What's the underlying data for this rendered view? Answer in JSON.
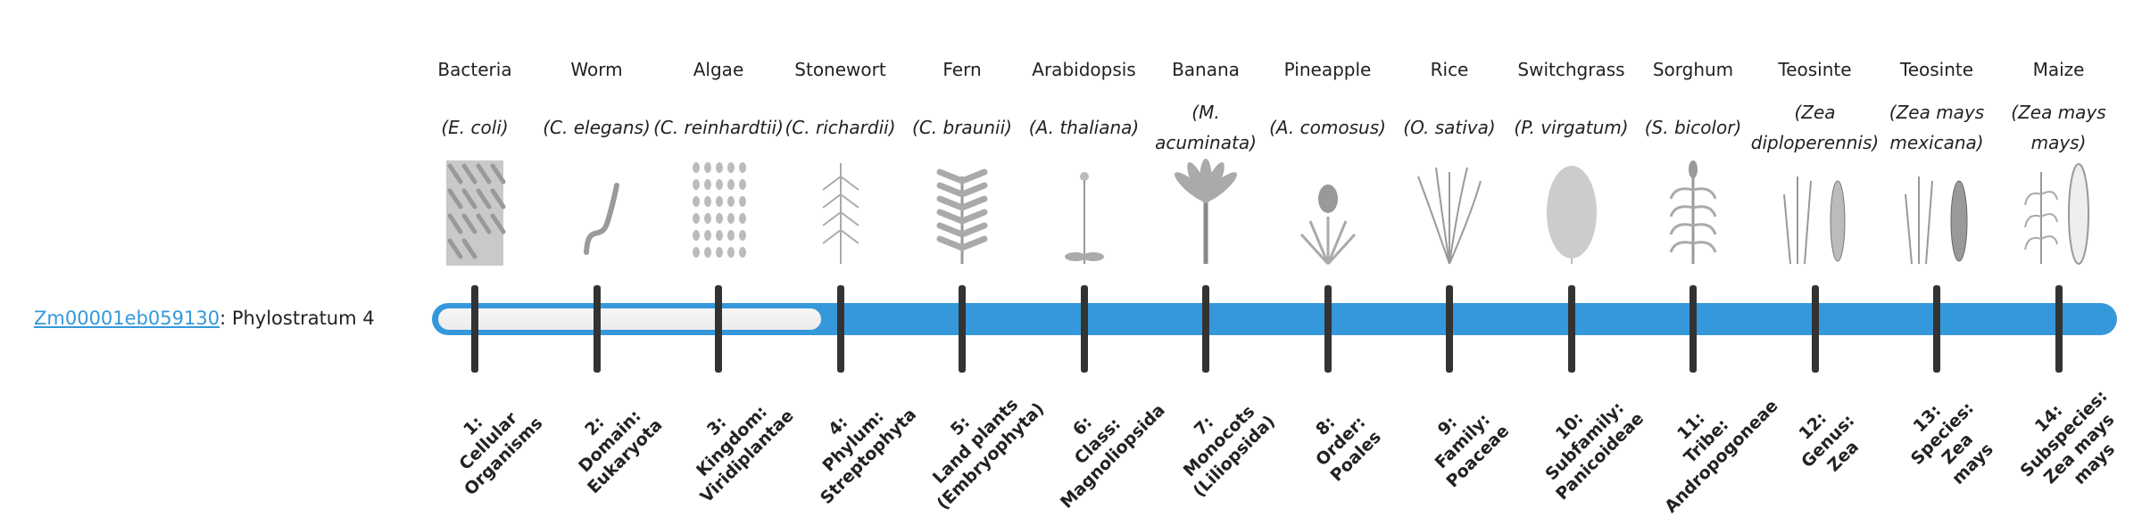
{
  "gene": {
    "id": "Zm00001eb059130",
    "suffix": ": Phylostratum 4"
  },
  "phylostratum": 4,
  "colors": {
    "bar": "#3498db",
    "tick": "#333333",
    "link": "#3498db"
  },
  "organisms": [
    {
      "name": "Bacteria",
      "sci": "(E. coli)",
      "icon": "bacteria-icon"
    },
    {
      "name": "Worm",
      "sci": "(C. elegans)",
      "icon": "worm-icon"
    },
    {
      "name": "Algae",
      "sci": "(C. reinhardtii)",
      "icon": "algae-icon"
    },
    {
      "name": "Stonewort",
      "sci": "(C. richardii)",
      "icon": "stonewort-icon"
    },
    {
      "name": "Fern",
      "sci": "(C. braunii)",
      "icon": "fern-icon"
    },
    {
      "name": "Arabidopsis",
      "sci": "(A. thaliana)",
      "icon": "arabidopsis-icon"
    },
    {
      "name": "Banana",
      "sci": "(M. acuminata)",
      "icon": "banana-icon"
    },
    {
      "name": "Pineapple",
      "sci": "(A. comosus)",
      "icon": "pineapple-icon"
    },
    {
      "name": "Rice",
      "sci": "(O. sativa)",
      "icon": "rice-icon"
    },
    {
      "name": "Switchgrass",
      "sci": "(P. virgatum)",
      "icon": "switchgrass-icon"
    },
    {
      "name": "Sorghum",
      "sci": "(S. bicolor)",
      "icon": "sorghum-icon"
    },
    {
      "name": "Teosinte",
      "sci": "(Zea diploperennis)",
      "icon": "teosinte-icon"
    },
    {
      "name": "Teosinte",
      "sci": "(Zea mays mexicana)",
      "icon": "teosinte-icon"
    },
    {
      "name": "Maize",
      "sci": "(Zea mays mays)",
      "icon": "maize-icon"
    }
  ],
  "strata": [
    "1:\nCellular\nOrganisms",
    "2:\nDomain:\nEukaryota",
    "3:\nKingdom:\nViridiplantae",
    "4:\nPhylum:\nStreptophyta",
    "5:\nLand plants\n(Embryophyta)",
    "6:\nClass:\nMagnoliopsida",
    "7:\nMonocots\n(Liliopsida)",
    "8:\nOrder:\nPoales",
    "9:\nFamily:\nPoaceae",
    "10:\nSubfamily:\nPanicoideae",
    "11:\nTribe:\nAndropogoneae",
    "12:\nGenus:\nZea",
    "13:\nSpecies:\nZea\nmays",
    "14:\nSubspecies:\nZea mays\nmays"
  ]
}
